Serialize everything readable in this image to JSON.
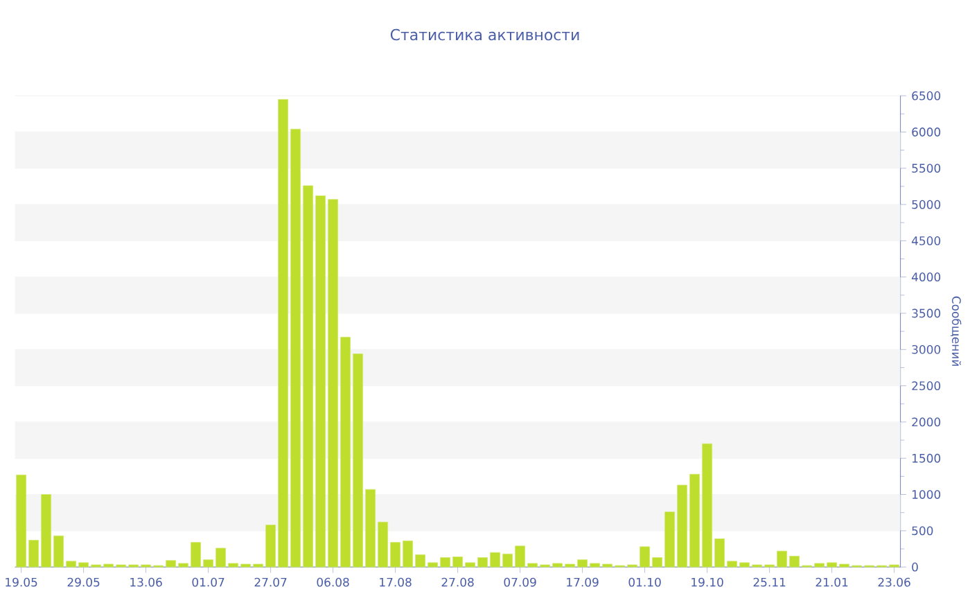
{
  "chart_data": {
    "type": "bar",
    "title": "Статистика активности",
    "ylabel": "Сообщений",
    "color": "#bede2e",
    "grid": "y",
    "categories": [
      "19.05",
      null,
      null,
      null,
      null,
      "29.05",
      null,
      null,
      null,
      null,
      "13.06",
      null,
      null,
      null,
      null,
      "01.07",
      null,
      null,
      null,
      null,
      "27.07",
      null,
      null,
      null,
      null,
      "06.08",
      null,
      null,
      null,
      null,
      "17.08",
      null,
      null,
      null,
      null,
      "27.08",
      null,
      null,
      null,
      null,
      "07.09",
      null,
      null,
      null,
      null,
      "17.09",
      null,
      null,
      null,
      null,
      "01.10",
      null,
      null,
      null,
      null,
      "19.10",
      null,
      null,
      null,
      null,
      "25.11",
      null,
      null,
      null,
      null,
      "21.01",
      null,
      null,
      null,
      null,
      "23.06"
    ],
    "values": [
      1270,
      370,
      1000,
      430,
      80,
      60,
      30,
      40,
      30,
      30,
      30,
      20,
      90,
      50,
      340,
      100,
      260,
      50,
      40,
      40,
      580,
      6450,
      6040,
      5260,
      5120,
      5070,
      3170,
      2940,
      1070,
      620,
      340,
      360,
      170,
      60,
      130,
      140,
      60,
      130,
      200,
      180,
      290,
      50,
      30,
      50,
      40,
      100,
      50,
      40,
      20,
      30,
      280,
      130,
      760,
      1130,
      1280,
      1700,
      390,
      80,
      60,
      30,
      30,
      220,
      150,
      20,
      50,
      60,
      40,
      20,
      20,
      20,
      30
    ],
    "ylim": [
      0,
      6500
    ],
    "yticks": [
      0,
      500,
      1000,
      1500,
      2000,
      2500,
      3000,
      3500,
      4000,
      4500,
      5000,
      5500,
      6000,
      6500
    ]
  }
}
